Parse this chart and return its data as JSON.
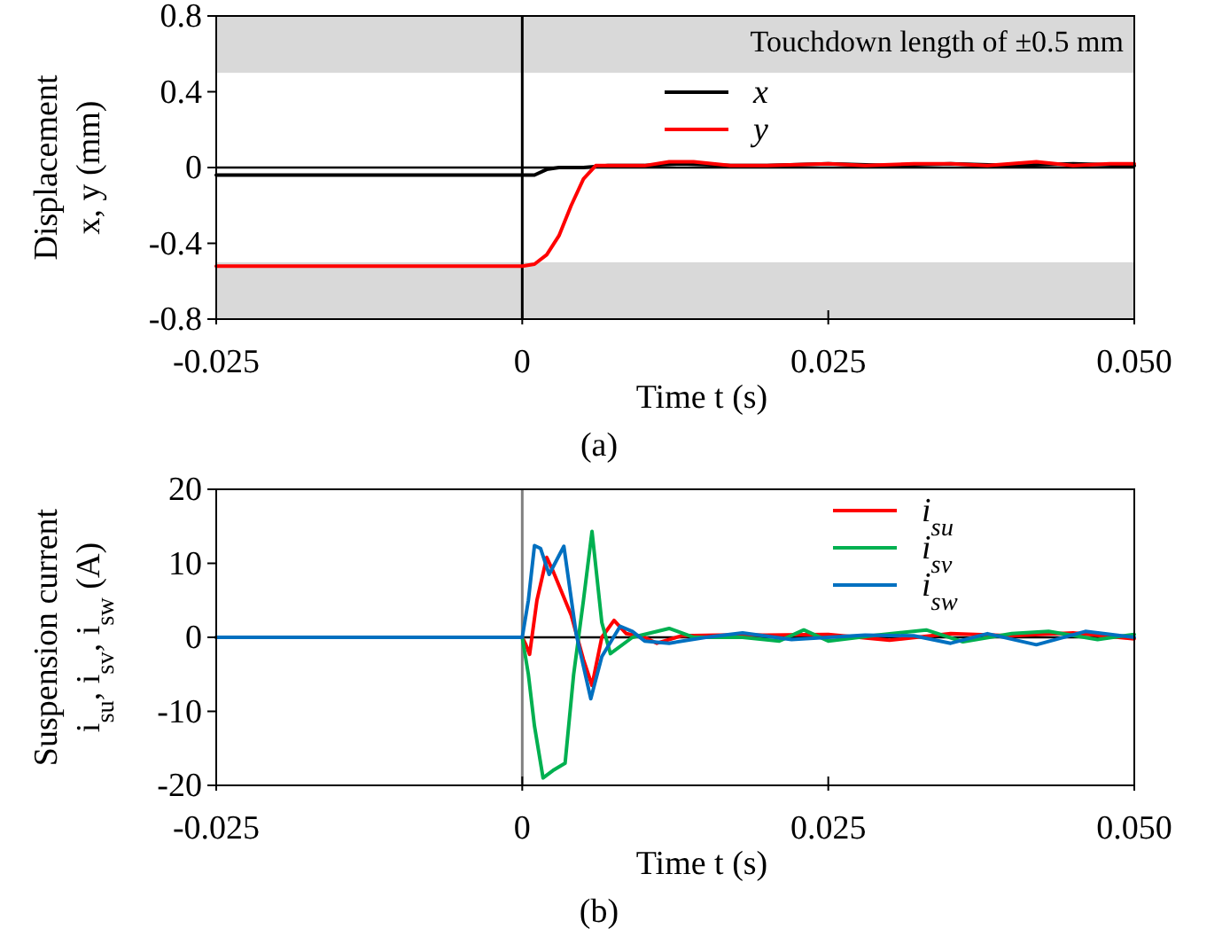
{
  "chart_data": [
    {
      "type": "line",
      "xlabel": "Time t (s)",
      "ylabel": "Displacement\nx, y (mm)",
      "annotations": [
        "(a)"
      ],
      "xlim": [
        -0.025,
        0.05
      ],
      "xticks": [
        -0.025,
        0,
        0.025,
        {
          "value": 0.05,
          "label": "0.050"
        }
      ],
      "ylim": [
        -0.8,
        0.8
      ],
      "yticks": [
        -0.8,
        -0.4,
        0,
        0.4,
        0.8
      ],
      "legend": "top",
      "bands": [
        {
          "axis": "y",
          "from": 0.5,
          "to": 0.8,
          "label": "Touchdown length of ±0.5 mm",
          "color": "#d9d9d9"
        },
        {
          "axis": "y",
          "from": -0.8,
          "to": -0.5,
          "color": "#d9d9d9"
        }
      ],
      "ref_lines": [
        {
          "axis": "x",
          "value": 0,
          "color": "#000000"
        },
        {
          "axis": "y",
          "value": 0,
          "color": "#000000"
        }
      ],
      "series": [
        {
          "name": "x",
          "color": "#000000",
          "x": [
            -0.025,
            -0.015,
            -0.005,
            0,
            0.001,
            0.002,
            0.003,
            0.005,
            0.007,
            0.01,
            0.013,
            0.017,
            0.02,
            0.025,
            0.03,
            0.035,
            0.04,
            0.045,
            0.05
          ],
          "values": [
            -0.04,
            -0.04,
            -0.04,
            -0.04,
            -0.04,
            -0.01,
            0,
            0,
            0.01,
            0.01,
            0.02,
            0.01,
            0.01,
            0.02,
            0.01,
            0.02,
            0.01,
            0.02,
            0.01
          ]
        },
        {
          "name": "y",
          "color": "#ff0000",
          "x": [
            -0.025,
            -0.015,
            -0.005,
            0,
            0.001,
            0.002,
            0.003,
            0.004,
            0.005,
            0.006,
            0.008,
            0.01,
            0.012,
            0.014,
            0.017,
            0.02,
            0.025,
            0.028,
            0.032,
            0.035,
            0.038,
            0.042,
            0.045,
            0.048,
            0.05
          ],
          "values": [
            -0.52,
            -0.52,
            -0.52,
            -0.52,
            -0.51,
            -0.46,
            -0.36,
            -0.2,
            -0.06,
            0.01,
            0.01,
            0.01,
            0.03,
            0.03,
            0.01,
            0.01,
            0.02,
            0.01,
            0.02,
            0.02,
            0.01,
            0.03,
            0.01,
            0.02,
            0.02
          ]
        }
      ]
    },
    {
      "type": "line",
      "xlabel": "Time t (s)",
      "ylabel": "Suspension current\ni$_{su}$, i$_{sv}$, i$_{sw}$ (A)",
      "annotations": [
        "(b)"
      ],
      "xlim": [
        -0.025,
        0.05
      ],
      "xticks": [
        -0.025,
        0,
        0.025,
        {
          "value": 0.05,
          "label": "0.050"
        }
      ],
      "ylim": [
        -20,
        20
      ],
      "yticks": [
        -20,
        -10,
        0,
        10,
        20
      ],
      "legend": "top right",
      "ref_lines": [
        {
          "axis": "x",
          "value": 0,
          "color": "#808080"
        },
        {
          "axis": "y",
          "value": 0,
          "color": "#000000"
        }
      ],
      "series": [
        {
          "name": "i$_{su}$",
          "color": "#ff0000",
          "x": [
            -0.025,
            0,
            0.0003,
            0.0006,
            0.0012,
            0.002,
            0.0025,
            0.003,
            0.004,
            0.005,
            0.0057,
            0.0065,
            0.0075,
            0.0085,
            0.01,
            0.011,
            0.013,
            0.016,
            0.02,
            0.025,
            0.03,
            0.035,
            0.04,
            0.045,
            0.05
          ],
          "values": [
            0,
            0,
            -1,
            -2.3,
            5,
            10.8,
            9,
            7,
            3,
            -3,
            -6.5,
            0,
            2.3,
            0.5,
            0,
            -0.8,
            0.2,
            0.3,
            0.3,
            0.4,
            -0.4,
            0.5,
            0.2,
            0.6,
            -0.2
          ]
        },
        {
          "name": "i$_{sv}$",
          "color": "#00b050",
          "x": [
            -0.025,
            0,
            0.0005,
            0.001,
            0.0017,
            0.0025,
            0.0035,
            0.0042,
            0.005,
            0.0057,
            0.0065,
            0.0072,
            0.009,
            0.012,
            0.014,
            0.018,
            0.021,
            0.023,
            0.025,
            0.029,
            0.033,
            0.036,
            0.04,
            0.043,
            0.047,
            0.05
          ],
          "values": [
            0,
            0,
            -5,
            -12,
            -19,
            -18,
            -17,
            -5,
            5,
            14.3,
            2,
            -2.2,
            0,
            1.2,
            0,
            0,
            -0.5,
            1,
            -0.5,
            0.3,
            1,
            -0.6,
            0.5,
            0.8,
            -0.3,
            0.4
          ]
        },
        {
          "name": "i$_{sw}$",
          "color": "#0070c0",
          "x": [
            -0.025,
            0,
            0.0005,
            0.001,
            0.0015,
            0.0022,
            0.0034,
            0.0044,
            0.0056,
            0.0065,
            0.008,
            0.009,
            0.01,
            0.012,
            0.015,
            0.018,
            0.022,
            0.025,
            0.028,
            0.032,
            0.035,
            0.038,
            0.042,
            0.046,
            0.05
          ],
          "values": [
            0,
            0,
            5,
            12.4,
            12,
            8.5,
            12.3,
            0.5,
            -8.3,
            -2.6,
            1.5,
            0.8,
            -0.5,
            -0.8,
            0,
            0.6,
            -0.3,
            0,
            0.3,
            0.2,
            -0.8,
            0.5,
            -1,
            0.8,
            0
          ]
        }
      ]
    }
  ]
}
